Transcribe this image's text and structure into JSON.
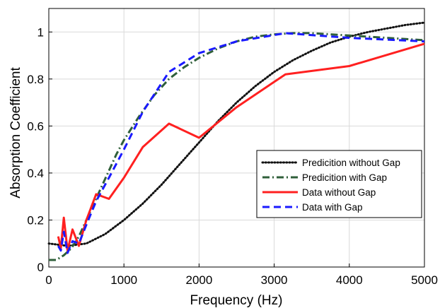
{
  "chart_data": {
    "type": "line",
    "xlabel": "Frequency (Hz)",
    "ylabel": "Absorption Coefficient",
    "xlim": [
      0,
      5000
    ],
    "ylim": [
      0,
      1.1
    ],
    "xticks": [
      0,
      1000,
      2000,
      3000,
      4000,
      5000
    ],
    "yticks": [
      0,
      0.2,
      0.4,
      0.6,
      0.8,
      1
    ],
    "xtick_labels": [
      "0",
      "1000",
      "2000",
      "3000",
      "4000",
      "5000"
    ],
    "ytick_labels": [
      "0",
      "0.2",
      "0.4",
      "0.6",
      "0.8",
      "1"
    ],
    "grid": true,
    "legend_position": "lower-right",
    "series": [
      {
        "name": "Predicition without Gap",
        "color": "#111111",
        "style": "dotted",
        "x": [
          0,
          250,
          500,
          750,
          1000,
          1250,
          1500,
          1750,
          2000,
          2250,
          2500,
          2750,
          3000,
          3250,
          3500,
          3750,
          4000,
          4250,
          4500,
          4750,
          5000
        ],
        "y": [
          0.1,
          0.09,
          0.1,
          0.14,
          0.2,
          0.27,
          0.35,
          0.44,
          0.53,
          0.62,
          0.7,
          0.77,
          0.83,
          0.88,
          0.92,
          0.955,
          0.98,
          1.0,
          1.015,
          1.03,
          1.04
        ]
      },
      {
        "name": "Predicition with Gap",
        "color": "#2f5f3a",
        "style": "dashdot",
        "x": [
          0,
          100,
          200,
          300,
          400,
          500,
          600,
          700,
          800,
          900,
          1000,
          1200,
          1400,
          1600,
          1800,
          2000,
          2250,
          2500,
          2750,
          3000,
          3250,
          3500,
          3750,
          4000,
          4250,
          4500,
          4750,
          5000
        ],
        "y": [
          0.03,
          0.03,
          0.05,
          0.08,
          0.13,
          0.2,
          0.27,
          0.34,
          0.41,
          0.48,
          0.54,
          0.64,
          0.73,
          0.8,
          0.85,
          0.89,
          0.93,
          0.96,
          0.98,
          0.99,
          0.995,
          0.995,
          0.99,
          0.985,
          0.98,
          0.975,
          0.97,
          0.965
        ]
      },
      {
        "name": "Data without Gap",
        "color": "#ff2020",
        "style": "solid",
        "x": [
          125,
          160,
          200,
          250,
          315,
          400,
          500,
          630,
          800,
          1000,
          1250,
          1600,
          2000,
          2500,
          3150,
          4000,
          5000
        ],
        "y": [
          0.13,
          0.08,
          0.21,
          0.07,
          0.16,
          0.09,
          0.2,
          0.31,
          0.29,
          0.38,
          0.51,
          0.61,
          0.55,
          0.68,
          0.82,
          0.855,
          0.95
        ]
      },
      {
        "name": "Data with Gap",
        "color": "#1a1aff",
        "style": "dashed",
        "x": [
          125,
          160,
          200,
          250,
          315,
          400,
          500,
          630,
          800,
          1000,
          1250,
          1600,
          2000,
          2500,
          3150,
          4000,
          5000
        ],
        "y": [
          0.09,
          0.07,
          0.15,
          0.06,
          0.11,
          0.1,
          0.18,
          0.28,
          0.38,
          0.5,
          0.66,
          0.83,
          0.91,
          0.96,
          0.995,
          0.975,
          0.96
        ]
      }
    ]
  }
}
